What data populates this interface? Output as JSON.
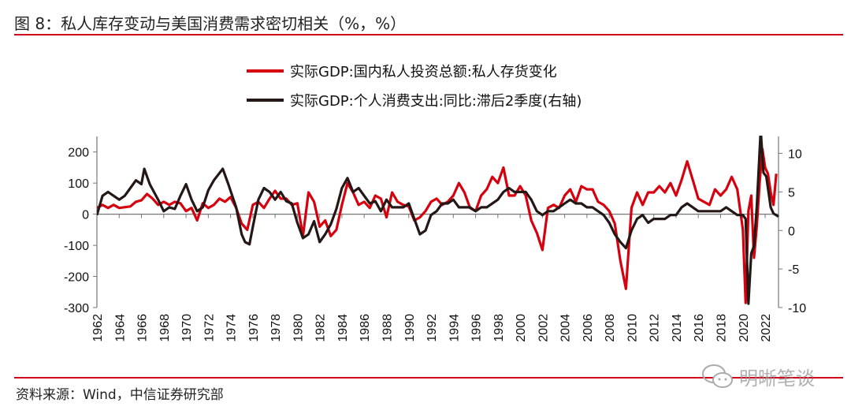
{
  "title": "图 8：私人库存变动与美国消费需求密切相关（%，%）",
  "source": "资料来源：Wind，中信证券研究部",
  "watermark": "明晰笔谈",
  "chart_data": {
    "type": "line",
    "title": "",
    "xlabel": "",
    "ylabel": "",
    "xlim": [
      1962,
      2023.2
    ],
    "ylim_left": [
      -300,
      250
    ],
    "ylim_right": [
      -10,
      12.2
    ],
    "yticks_left": [
      200,
      100,
      0,
      -100,
      -200,
      -300
    ],
    "yticks_right": [
      10,
      5,
      0,
      -5,
      -10
    ],
    "xticks": [
      "1962",
      "1964",
      "1966",
      "1968",
      "1970",
      "1972",
      "1974",
      "1976",
      "1978",
      "1980",
      "1982",
      "1984",
      "1986",
      "1988",
      "1990",
      "1992",
      "1994",
      "1996",
      "1998",
      "2000",
      "2002",
      "2004",
      "2006",
      "2008",
      "2010",
      "2012",
      "2014",
      "2016",
      "2018",
      "2020",
      "2022"
    ],
    "grid": false,
    "legend_position": "top-center",
    "colors": {
      "series1": "#d7000f",
      "series2": "#231815"
    },
    "series": [
      {
        "name": "实际GDP:国内私人投资总额:私人存货变化",
        "axis": "left",
        "x": [
          1962,
          1962.5,
          1963,
          1963.5,
          1964,
          1965,
          1965.5,
          1966,
          1966.5,
          1967,
          1967.5,
          1968,
          1968.5,
          1969,
          1969.5,
          1970,
          1970.5,
          1971,
          1971.5,
          1972,
          1972.5,
          1973,
          1973.5,
          1974,
          1974.5,
          1975,
          1975.5,
          1976,
          1976.5,
          1977,
          1977.5,
          1978,
          1978.5,
          1979,
          1979.5,
          1980,
          1980.5,
          1981,
          1981.5,
          1982,
          1982.5,
          1983,
          1983.5,
          1984,
          1984.5,
          1985,
          1985.5,
          1986,
          1986.5,
          1987,
          1987.5,
          1988,
          1988.5,
          1989,
          1989.5,
          1990,
          1990.5,
          1991,
          1991.5,
          1992,
          1992.5,
          1993,
          1993.5,
          1994,
          1994.5,
          1995,
          1995.5,
          1996,
          1996.5,
          1997,
          1997.5,
          1998,
          1998.5,
          1999,
          1999.5,
          2000,
          2000.5,
          2001,
          2001.5,
          2002,
          2002.5,
          2003,
          2003.5,
          2004,
          2004.5,
          2005,
          2005.5,
          2006,
          2006.5,
          2007,
          2007.5,
          2008,
          2008.5,
          2009,
          2009.5,
          2010,
          2010.5,
          2011,
          2011.5,
          2012,
          2012.5,
          2013,
          2013.5,
          2014,
          2014.5,
          2015,
          2015.5,
          2016,
          2016.5,
          2017,
          2017.5,
          2018,
          2018.5,
          2019,
          2019.5,
          2020,
          2020.25,
          2020.5,
          2020.75,
          2021,
          2021.25,
          2021.5,
          2021.75,
          2022,
          2022.25,
          2022.5,
          2022.75,
          2023
        ],
        "y": [
          20,
          30,
          20,
          30,
          20,
          25,
          40,
          45,
          65,
          50,
          30,
          40,
          30,
          40,
          35,
          10,
          20,
          -20,
          35,
          20,
          30,
          50,
          40,
          55,
          20,
          -30,
          -50,
          30,
          40,
          20,
          50,
          75,
          50,
          50,
          30,
          35,
          -70,
          70,
          40,
          -40,
          -20,
          -70,
          -50,
          30,
          100,
          70,
          30,
          40,
          20,
          60,
          50,
          -10,
          70,
          40,
          30,
          25,
          -20,
          -10,
          10,
          40,
          50,
          30,
          40,
          60,
          100,
          70,
          20,
          10,
          60,
          80,
          120,
          100,
          150,
          60,
          60,
          90,
          60,
          -20,
          -60,
          -115,
          20,
          30,
          20,
          60,
          80,
          40,
          90,
          80,
          80,
          40,
          30,
          10,
          -30,
          -150,
          -240,
          20,
          70,
          30,
          70,
          70,
          90,
          70,
          100,
          60,
          110,
          170,
          110,
          50,
          40,
          30,
          80,
          60,
          80,
          120,
          80,
          -50,
          -285,
          10,
          60,
          -140,
          -40,
          100,
          210,
          150,
          130,
          70,
          30,
          130
        ]
      },
      {
        "name": "实际GDP:个人消费支出:同比:滞后2季度(右轴)",
        "axis": "right",
        "x": [
          1962,
          1962.5,
          1963,
          1963.5,
          1964,
          1964.5,
          1965,
          1965.5,
          1966,
          1966.25,
          1966.75,
          1967.5,
          1968,
          1968.5,
          1969,
          1969.5,
          1970,
          1970.5,
          1971,
          1971.5,
          1972,
          1972.5,
          1973.3,
          1973.8,
          1974.5,
          1975,
          1975.3,
          1975.7,
          1976,
          1976.5,
          1977,
          1977.5,
          1978,
          1978.5,
          1979,
          1979.5,
          1980,
          1980.5,
          1981,
          1981.5,
          1982,
          1982.5,
          1983,
          1983.5,
          1984,
          1984.5,
          1985,
          1985.5,
          1986,
          1986.5,
          1987,
          1987.5,
          1988,
          1988.5,
          1989,
          1989.5,
          1990,
          1990.5,
          1991,
          1991.5,
          1992,
          1992.5,
          1993,
          1993.5,
          1994,
          1994.5,
          1995,
          1995.5,
          1996,
          1996.5,
          1997,
          1997.5,
          1998,
          1998.5,
          1999,
          1999.5,
          2000,
          2000.5,
          2001,
          2001.5,
          2002,
          2002.5,
          2003,
          2003.5,
          2004,
          2004.5,
          2005,
          2005.5,
          2006,
          2006.5,
          2007,
          2007.5,
          2008,
          2008.5,
          2009,
          2009.5,
          2010,
          2010.5,
          2011,
          2011.5,
          2012,
          2012.5,
          2013,
          2013.5,
          2014,
          2014.5,
          2015,
          2015.5,
          2016,
          2016.5,
          2017,
          2017.5,
          2018,
          2018.5,
          2019,
          2019.5,
          2020,
          2020.25,
          2020.5,
          2020.75,
          2021,
          2021.25,
          2021.6,
          2021.85,
          2022.1,
          2022.5,
          2022.75,
          2023.2
        ],
        "y": [
          2,
          4.5,
          5,
          4.5,
          4,
          4.5,
          5.5,
          6.5,
          6,
          8,
          6,
          4,
          2.5,
          3,
          2.8,
          4.5,
          6,
          4,
          2.5,
          3,
          5.2,
          6.5,
          8,
          6,
          3,
          -0.5,
          -1.5,
          -1.8,
          0.5,
          4,
          5.5,
          5,
          4,
          5,
          3.8,
          3.5,
          1,
          -1,
          -0.5,
          1.2,
          -1.5,
          -0.5,
          0.8,
          2.8,
          5.5,
          6.8,
          5,
          5.5,
          4.5,
          3.5,
          3.8,
          2.5,
          4,
          3,
          3,
          3,
          3.5,
          1.5,
          -0.5,
          0,
          2,
          2.5,
          3.5,
          3.5,
          4,
          3,
          3,
          3,
          2.5,
          3,
          3,
          3.5,
          4,
          5,
          5.5,
          5,
          5,
          5,
          4,
          2.5,
          2,
          2.5,
          2.5,
          3,
          3.5,
          4,
          3.5,
          3.5,
          3,
          3,
          2.5,
          2,
          1,
          -0.5,
          -1.5,
          -2.3,
          0,
          1.5,
          2,
          1,
          1.5,
          1.5,
          1.5,
          2,
          2,
          3,
          3.5,
          3,
          2.5,
          2.5,
          2.5,
          2.5,
          2.5,
          3,
          2.5,
          2,
          2,
          1.5,
          -9.5,
          -3,
          -2,
          3,
          13,
          7.5,
          7,
          3,
          2.2,
          1.8
        ]
      }
    ]
  }
}
